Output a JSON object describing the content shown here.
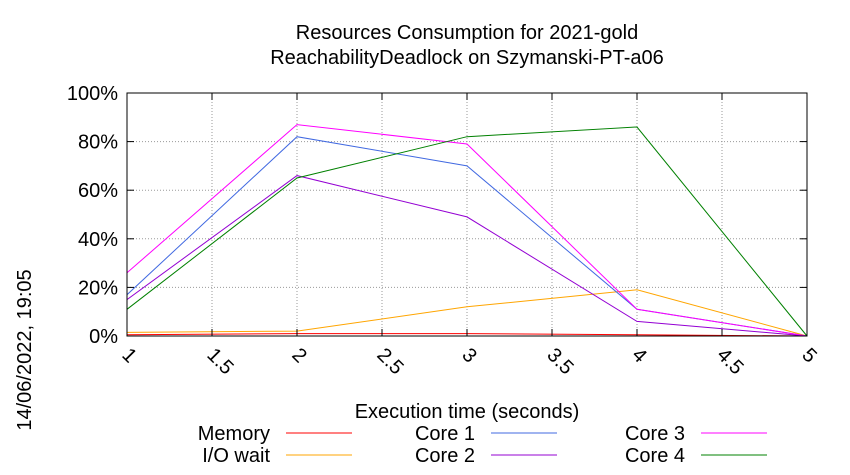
{
  "chart_data": {
    "type": "line",
    "title": "Resources Consumption for 2021-gold",
    "subtitle": "ReachabilityDeadlock on Szymanski-PT-a06",
    "xlabel": "Execution time (seconds)",
    "ylabel": "",
    "side_label": "14/06/2022, 19:05",
    "xlim": [
      1,
      5
    ],
    "ylim": [
      0,
      100
    ],
    "x_ticks": [
      "1",
      "1.5",
      "2",
      "2.5",
      "3",
      "3.5",
      "4",
      "4.5",
      "5"
    ],
    "y_ticks": [
      "0%",
      "20%",
      "40%",
      "60%",
      "80%",
      "100%"
    ],
    "grid": true,
    "legend_position": "bottom",
    "series": [
      {
        "name": "Memory",
        "color": "#ff0000",
        "x": [
          1,
          2,
          3,
          4,
          5
        ],
        "y": [
          0.5,
          1,
          1,
          0.5,
          0
        ]
      },
      {
        "name": "I/O wait",
        "color": "#ffa500",
        "x": [
          1,
          2,
          3,
          4,
          5
        ],
        "y": [
          1.5,
          2,
          12,
          19,
          0
        ]
      },
      {
        "name": "Core 1",
        "color": "#4169e1",
        "x": [
          1,
          2,
          3,
          4,
          5
        ],
        "y": [
          17,
          82,
          70,
          11,
          0
        ]
      },
      {
        "name": "Core 2",
        "color": "#9400d3",
        "x": [
          1,
          2,
          3,
          4,
          5
        ],
        "y": [
          15,
          66,
          49,
          6,
          0
        ]
      },
      {
        "name": "Core 3",
        "color": "#ff00ff",
        "x": [
          1,
          2,
          3,
          4,
          5
        ],
        "y": [
          26,
          87,
          79,
          11,
          0
        ]
      },
      {
        "name": "Core 4",
        "color": "#008000",
        "x": [
          1,
          2,
          3,
          4,
          5
        ],
        "y": [
          11,
          65,
          82,
          86,
          0
        ]
      }
    ]
  }
}
